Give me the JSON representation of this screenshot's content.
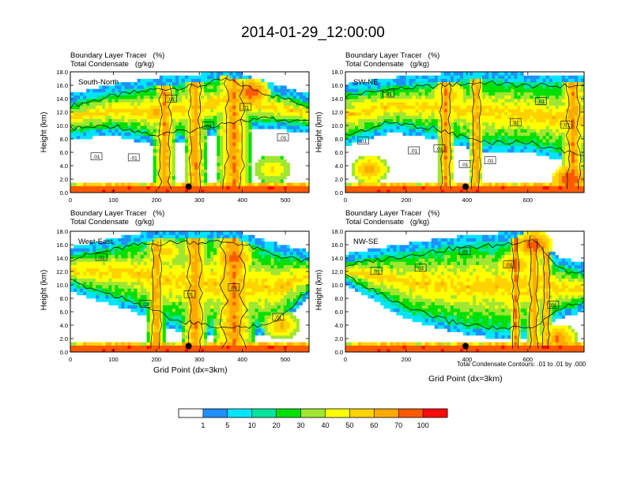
{
  "title": "2014-01-29_12:00:00",
  "field_labels": {
    "tracer": "Boundary Layer Tracer   (%)",
    "condensate": "Total Condensate   (g/kg)"
  },
  "colors": {
    "bins": [
      "#ffffff",
      "#1e90ff",
      "#00e5ff",
      "#00e39a",
      "#00e000",
      "#a0e632",
      "#ffff00",
      "#ffd200",
      "#ffaa00",
      "#ff5a00",
      "#ff0a0a"
    ],
    "contour": "#000000",
    "marker": "#000000"
  },
  "colorbar": {
    "labels": [
      "1",
      "5",
      "10",
      "20",
      "30",
      "40",
      "50",
      "60",
      "70",
      "100"
    ]
  },
  "y_label": "Height (km)",
  "x_label": "Grid Point (dx=3km)",
  "footnote": "Total Condensate Contours: .01 to .01 by .000",
  "chart_data": [
    {
      "type": "heatmap",
      "panel_label": "South-North",
      "ylabel": "Height (km)",
      "xlabel": "",
      "xlim": [
        0,
        555
      ],
      "ylim": [
        0,
        18
      ],
      "x_ticks": [
        0,
        100,
        200,
        300,
        400,
        500
      ],
      "y_ticks": [
        "0.0",
        "2.0",
        "4.0",
        "6.0",
        "8.0",
        "10.0",
        "12.0",
        "14.0",
        "16.0",
        "18.0"
      ],
      "contour_labels": [
        ".01",
        ".01",
        ".01",
        ".01",
        ".01",
        ".01"
      ],
      "marker_x": 275,
      "anvil": [
        {
          "x": 0,
          "base": 9,
          "top": 13.5
        },
        {
          "x": 100,
          "base": 9.5,
          "top": 15
        },
        {
          "x": 200,
          "base": 8,
          "top": 16
        },
        {
          "x": 300,
          "base": 9,
          "top": 16.5
        },
        {
          "x": 360,
          "base": 10,
          "top": 17.5
        },
        {
          "x": 450,
          "base": 10.5,
          "top": 15.5
        },
        {
          "x": 555,
          "base": 10,
          "top": 13.5
        }
      ],
      "towers": [
        {
          "x": 220,
          "w": 25
        },
        {
          "x": 290,
          "w": 25
        },
        {
          "x": 380,
          "w": 40
        }
      ],
      "hotspots": [
        {
          "x": 420,
          "y": 15,
          "v": 85
        },
        {
          "x": 200,
          "y": 12,
          "v": 65
        },
        {
          "x": 470,
          "y": 3.5,
          "v": 55
        }
      ]
    },
    {
      "type": "heatmap",
      "panel_label": "SW-NE",
      "ylabel": "Height (km)",
      "xlabel": "",
      "xlim": [
        0,
        785
      ],
      "ylim": [
        0,
        18
      ],
      "x_ticks": [
        0,
        200,
        400,
        600
      ],
      "y_ticks": [
        "0.0",
        "2.0",
        "4.0",
        "6.0",
        "8.0",
        "10.0",
        "12.0",
        "14.0",
        "16.0",
        "18.0"
      ],
      "contour_labels": [
        ".01",
        ".01",
        ".01",
        ".01",
        ".01",
        ".01",
        ".01",
        ".01",
        ".01"
      ],
      "marker_x": 395,
      "anvil": [
        {
          "x": 0,
          "base": 8,
          "top": 15
        },
        {
          "x": 150,
          "base": 10,
          "top": 16
        },
        {
          "x": 300,
          "base": 9,
          "top": 16.5
        },
        {
          "x": 450,
          "base": 7,
          "top": 17
        },
        {
          "x": 600,
          "base": 7,
          "top": 16.5
        },
        {
          "x": 785,
          "base": 5,
          "top": 16.5
        }
      ],
      "towers": [
        {
          "x": 330,
          "w": 30
        },
        {
          "x": 430,
          "w": 25
        },
        {
          "x": 750,
          "w": 40
        }
      ],
      "hotspots": [
        {
          "x": 80,
          "y": 3.5,
          "v": 70
        },
        {
          "x": 340,
          "y": 14.5,
          "v": 65
        },
        {
          "x": 740,
          "y": 2,
          "v": 90
        }
      ]
    },
    {
      "type": "heatmap",
      "panel_label": "West-East",
      "ylabel": "Height (km)",
      "xlabel": "Grid Point (dx=3km)",
      "xlim": [
        0,
        555
      ],
      "ylim": [
        0,
        18
      ],
      "x_ticks": [
        0,
        100,
        200,
        300,
        400,
        500
      ],
      "y_ticks": [
        "0.0",
        "2.0",
        "4.0",
        "6.0",
        "8.0",
        "10.0",
        "12.0",
        "14.0",
        "16.0",
        "18.0"
      ],
      "contour_labels": [
        ".01",
        ".01",
        ".01",
        ".01",
        ".01"
      ],
      "marker_x": 275,
      "anvil": [
        {
          "x": 0,
          "base": 10,
          "top": 14.5
        },
        {
          "x": 150,
          "base": 7,
          "top": 16.5
        },
        {
          "x": 250,
          "base": 4,
          "top": 17
        },
        {
          "x": 380,
          "base": 3,
          "top": 17
        },
        {
          "x": 480,
          "base": 4,
          "top": 15
        },
        {
          "x": 555,
          "base": 9,
          "top": 14
        }
      ],
      "towers": [
        {
          "x": 200,
          "w": 20
        },
        {
          "x": 290,
          "w": 30
        },
        {
          "x": 380,
          "w": 50
        }
      ],
      "hotspots": [
        {
          "x": 380,
          "y": 14,
          "v": 80
        },
        {
          "x": 220,
          "y": 15,
          "v": 60
        },
        {
          "x": 490,
          "y": 4,
          "v": 65
        }
      ]
    },
    {
      "type": "heatmap",
      "panel_label": "NW-SE",
      "ylabel": "Height (km)",
      "xlabel": "Grid Point (dx=3km)",
      "xlim": [
        0,
        785
      ],
      "ylim": [
        0,
        18
      ],
      "x_ticks": [
        0,
        200,
        400,
        600
      ],
      "y_ticks": [
        "0.0",
        "2.0",
        "4.0",
        "6.0",
        "8.0",
        "10.0",
        "12.0",
        "14.0",
        "16.0",
        "18.0"
      ],
      "contour_labels": [
        ".01",
        ".01",
        ".01",
        ".01",
        ".01"
      ],
      "marker_x": 395,
      "anvil": [
        {
          "x": 0,
          "base": 11,
          "top": 13.5
        },
        {
          "x": 200,
          "base": 6,
          "top": 15
        },
        {
          "x": 350,
          "base": 4,
          "top": 16
        },
        {
          "x": 500,
          "base": 3,
          "top": 16.5
        },
        {
          "x": 620,
          "base": 3,
          "top": 17.5
        },
        {
          "x": 700,
          "base": 6,
          "top": 13
        },
        {
          "x": 785,
          "base": 7,
          "top": 12
        }
      ],
      "towers": [
        {
          "x": 560,
          "w": 20
        },
        {
          "x": 620,
          "w": 25
        },
        {
          "x": 660,
          "w": 20
        }
      ],
      "hotspots": [
        {
          "x": 620,
          "y": 16,
          "v": 85
        },
        {
          "x": 560,
          "y": 13,
          "v": 70
        },
        {
          "x": 700,
          "y": 2,
          "v": 75
        }
      ]
    }
  ]
}
